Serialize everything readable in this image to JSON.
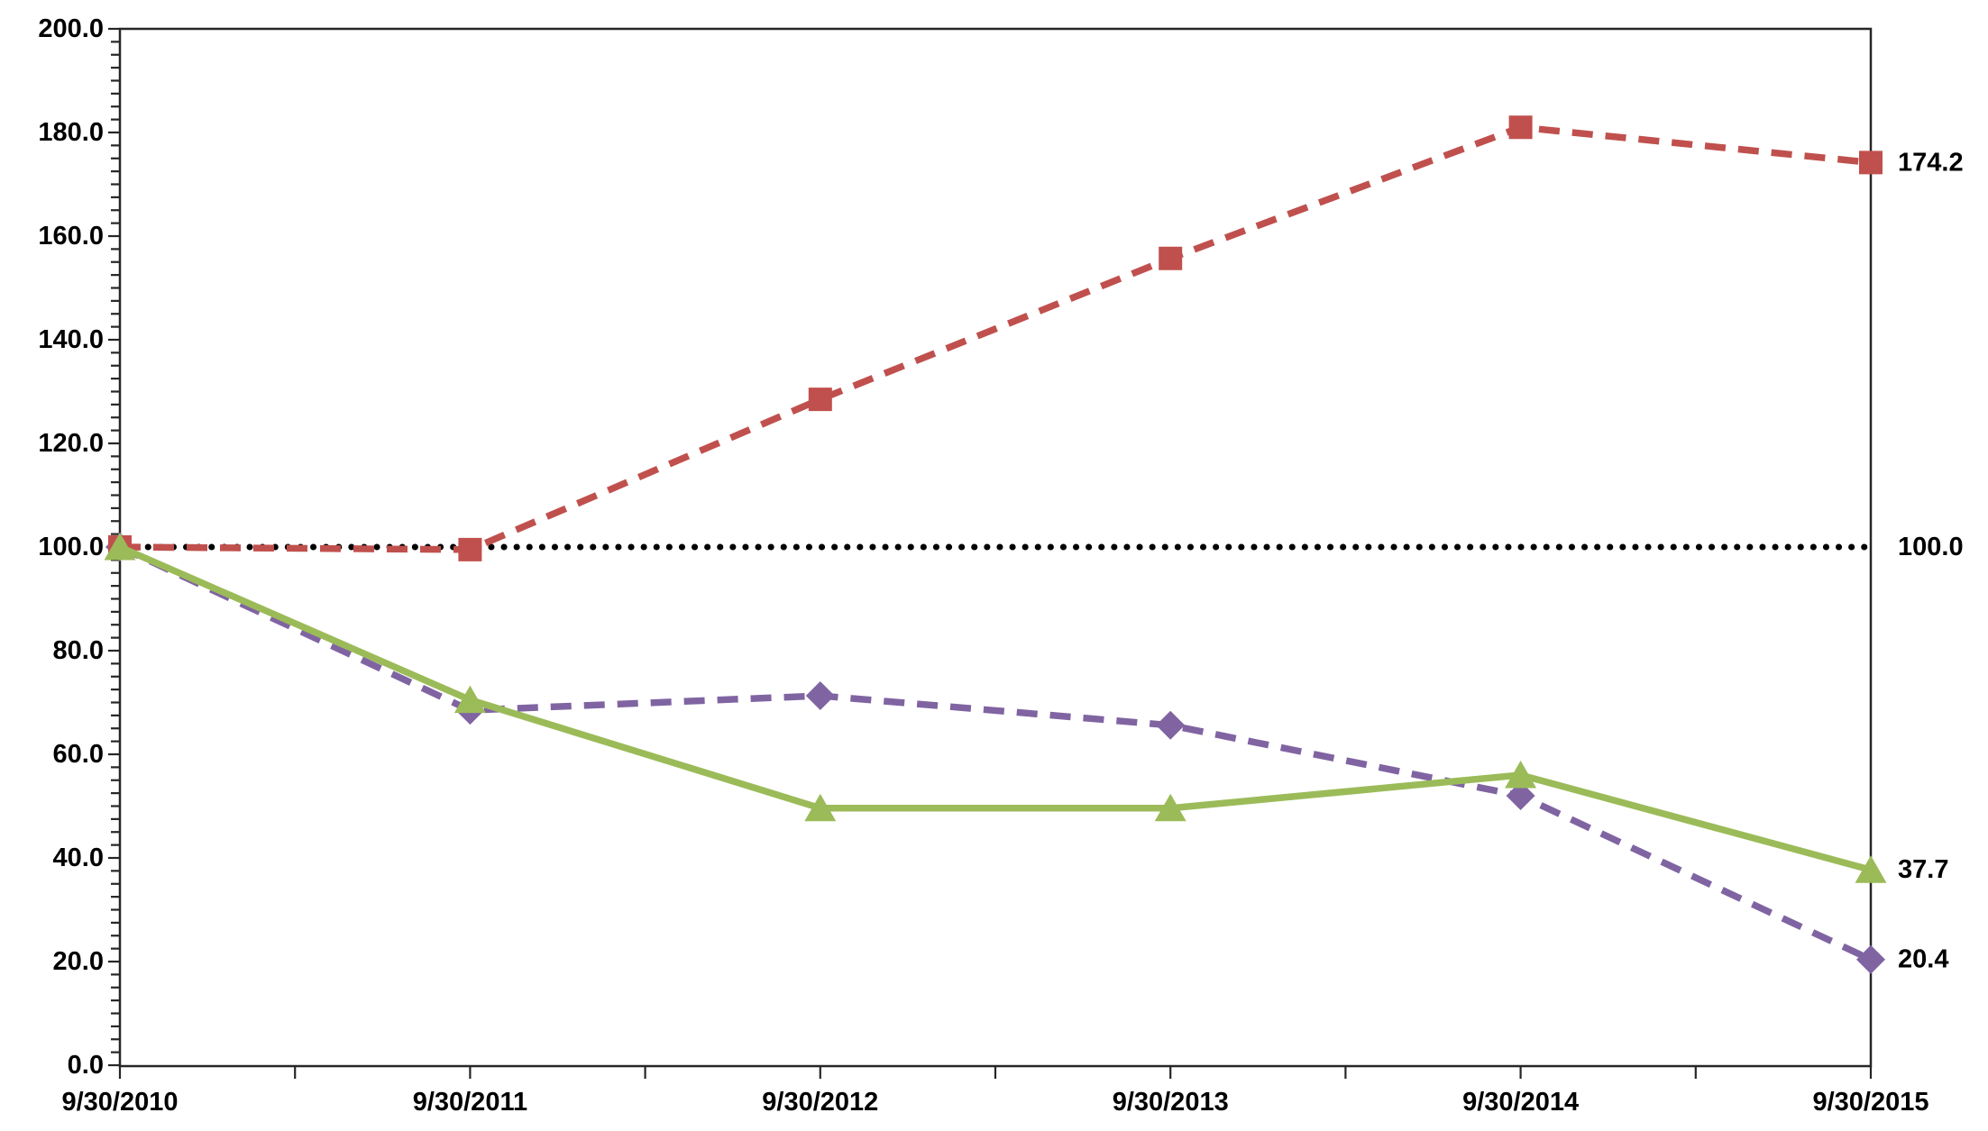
{
  "chart_data": {
    "type": "line",
    "title": "",
    "xlabel": "",
    "ylabel": "",
    "legend_position": "none",
    "grid": "off",
    "background_color": "#FFFFFF",
    "axis_color": "#262626",
    "label_text_color": "#000000",
    "categories": [
      "9/30/2010",
      "9/30/2011",
      "9/30/2012",
      "9/30/2013",
      "9/30/2014",
      "9/30/2015"
    ],
    "x_axis": {
      "tick_labels": [
        "9/30/2010",
        "9/30/2011",
        "9/30/2012",
        "9/30/2013",
        "9/30/2014",
        "9/30/2015"
      ],
      "minor_ticks_per_interval": 2
    },
    "y_axis": {
      "min": 0,
      "max": 200,
      "major_step": 20,
      "minor_step": 2.5,
      "tick_labels": [
        "0.0",
        "20.0",
        "40.0",
        "60.0",
        "80.0",
        "100.0",
        "120.0",
        "140.0",
        "160.0",
        "180.0",
        "200.0"
      ]
    },
    "reference_line": {
      "name": "baseline-100",
      "value": 100.0,
      "color": "#000000",
      "line_style": "dotted",
      "end_label": "100.0"
    },
    "series": [
      {
        "name": "purple-series",
        "color": "#8064A2",
        "line_style": "dashed",
        "marker": "diamond",
        "values": [
          100.0,
          68.5,
          71.3,
          65.6,
          52.0,
          20.4
        ],
        "end_label": "20.4"
      },
      {
        "name": "red-series",
        "color": "#C0504D",
        "line_style": "dashed",
        "marker": "square",
        "values": [
          100.0,
          99.5,
          128.5,
          155.7,
          181.0,
          174.2
        ],
        "end_label": "174.2"
      },
      {
        "name": "green-series",
        "color": "#9BBB59",
        "line_style": "solid",
        "marker": "triangle",
        "values": [
          100.0,
          70.5,
          49.6,
          49.6,
          56.0,
          37.7
        ],
        "end_label": "37.7"
      }
    ]
  }
}
